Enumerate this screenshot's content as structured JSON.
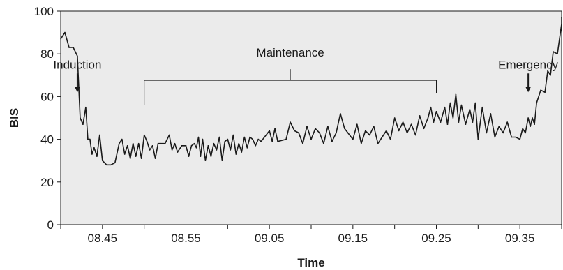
{
  "chart_data": {
    "type": "line",
    "xlabel": "Time",
    "ylabel": "BIS",
    "xlim": [
      "08:40",
      "09:40"
    ],
    "ylim": [
      0,
      100
    ],
    "x_ticks": [
      {
        "value": "08:45",
        "label": "08.45"
      },
      {
        "value": "08:55",
        "label": "08.55"
      },
      {
        "value": "09:05",
        "label": "09.05"
      },
      {
        "value": "09:15",
        "label": "09.15"
      },
      {
        "value": "09:25",
        "label": "09.25"
      },
      {
        "value": "09:35",
        "label": "09.35"
      }
    ],
    "y_ticks": [
      0,
      20,
      40,
      60,
      80,
      100
    ],
    "grid": false,
    "background": "#ebebeb",
    "line_color": "#1a1a1a",
    "annotations": [
      {
        "label": "Induction",
        "type": "arrow",
        "x": "08:42",
        "y": 62
      },
      {
        "label": "Maintenance",
        "type": "bracket",
        "x_start": "08:50",
        "x_end": "09:25",
        "y": 65
      },
      {
        "label": "Emergency",
        "type": "arrow",
        "x": "09:36",
        "y": 62
      }
    ],
    "series": [
      {
        "points": [
          [
            "08:40",
            87
          ],
          [
            "08:40",
            90
          ],
          [
            "08:41",
            83
          ],
          [
            "08:41",
            83
          ],
          [
            "08:42",
            79
          ],
          [
            "08:42",
            50
          ],
          [
            "08:42",
            47
          ],
          [
            "08:43",
            55
          ],
          [
            "08:43",
            40
          ],
          [
            "08:43",
            40
          ],
          [
            "08:43",
            33
          ],
          [
            "08:44",
            36
          ],
          [
            "08:44",
            32
          ],
          [
            "08:44",
            42
          ],
          [
            "08:45",
            30
          ],
          [
            "08:45",
            28
          ],
          [
            "08:46",
            28
          ],
          [
            "08:46",
            29
          ],
          [
            "08:47",
            38
          ],
          [
            "08:47",
            40
          ],
          [
            "08:47",
            33
          ],
          [
            "08:48",
            37
          ],
          [
            "08:48",
            31
          ],
          [
            "08:48",
            38
          ],
          [
            "08:49",
            32
          ],
          [
            "08:49",
            38
          ],
          [
            "08:49",
            31
          ],
          [
            "08:50",
            42
          ],
          [
            "08:50",
            39
          ],
          [
            "08:50",
            35
          ],
          [
            "08:51",
            37
          ],
          [
            "08:51",
            31
          ],
          [
            "08:51",
            38
          ],
          [
            "08:52",
            38
          ],
          [
            "08:52",
            38
          ],
          [
            "08:53",
            42
          ],
          [
            "08:53",
            35
          ],
          [
            "08:53",
            38
          ],
          [
            "08:54",
            34
          ],
          [
            "08:54",
            37
          ],
          [
            "08:55",
            37
          ],
          [
            "08:55",
            32
          ],
          [
            "08:55",
            37
          ],
          [
            "08:56",
            38
          ],
          [
            "08:56",
            36
          ],
          [
            "08:56",
            41
          ],
          [
            "08:56",
            32
          ],
          [
            "08:57",
            40
          ],
          [
            "08:57",
            30
          ],
          [
            "08:57",
            37
          ],
          [
            "08:58",
            32
          ],
          [
            "08:58",
            38
          ],
          [
            "08:58",
            35
          ],
          [
            "08:59",
            41
          ],
          [
            "08:59",
            30
          ],
          [
            "08:59",
            39
          ],
          [
            "09:00",
            40
          ],
          [
            "09:00",
            35
          ],
          [
            "09:00",
            42
          ],
          [
            "09:01",
            33
          ],
          [
            "09:01",
            38
          ],
          [
            "09:01",
            34
          ],
          [
            "09:02",
            41
          ],
          [
            "09:02",
            36
          ],
          [
            "09:02",
            41
          ],
          [
            "09:03",
            40
          ],
          [
            "09:03",
            37
          ],
          [
            "09:03",
            40
          ],
          [
            "09:04",
            39
          ],
          [
            "09:05",
            44
          ],
          [
            "09:05",
            39
          ],
          [
            "09:05",
            45
          ],
          [
            "09:06",
            39
          ],
          [
            "09:07",
            40
          ],
          [
            "09:07",
            48
          ],
          [
            "09:08",
            44
          ],
          [
            "09:08",
            43
          ],
          [
            "09:09",
            38
          ],
          [
            "09:09",
            46
          ],
          [
            "09:10",
            40
          ],
          [
            "09:10",
            45
          ],
          [
            "09:11",
            43
          ],
          [
            "09:11",
            38
          ],
          [
            "09:12",
            46
          ],
          [
            "09:12",
            39
          ],
          [
            "09:13",
            43
          ],
          [
            "09:13",
            52
          ],
          [
            "09:14",
            45
          ],
          [
            "09:15",
            40
          ],
          [
            "09:15",
            47
          ],
          [
            "09:16",
            38
          ],
          [
            "09:16",
            44
          ],
          [
            "09:17",
            42
          ],
          [
            "09:17",
            46
          ],
          [
            "09:18",
            38
          ],
          [
            "09:19",
            44
          ],
          [
            "09:19",
            40
          ],
          [
            "09:20",
            50
          ],
          [
            "09:20",
            44
          ],
          [
            "09:21",
            48
          ],
          [
            "09:21",
            43
          ],
          [
            "09:22",
            47
          ],
          [
            "09:22",
            42
          ],
          [
            "09:23",
            51
          ],
          [
            "09:23",
            45
          ],
          [
            "09:24",
            50
          ],
          [
            "09:24",
            55
          ],
          [
            "09:24",
            48
          ],
          [
            "09:25",
            53
          ],
          [
            "09:25",
            48
          ],
          [
            "09:26",
            55
          ],
          [
            "09:26",
            47
          ],
          [
            "09:26",
            57
          ],
          [
            "09:27",
            50
          ],
          [
            "09:27",
            61
          ],
          [
            "09:27",
            48
          ],
          [
            "09:28",
            56
          ],
          [
            "09:28",
            47
          ],
          [
            "09:29",
            54
          ],
          [
            "09:29",
            48
          ],
          [
            "09:29",
            57
          ],
          [
            "09:30",
            40
          ],
          [
            "09:30",
            55
          ],
          [
            "09:31",
            43
          ],
          [
            "09:31",
            52
          ],
          [
            "09:32",
            41
          ],
          [
            "09:32",
            46
          ],
          [
            "09:33",
            43
          ],
          [
            "09:33",
            48
          ],
          [
            "09:34",
            41
          ],
          [
            "09:34",
            41
          ],
          [
            "09:35",
            40
          ],
          [
            "09:35",
            45
          ],
          [
            "09:35",
            43
          ],
          [
            "09:36",
            50
          ],
          [
            "09:36",
            46
          ],
          [
            "09:36",
            50
          ],
          [
            "09:36",
            47
          ],
          [
            "09:37",
            57
          ],
          [
            "09:37",
            63
          ],
          [
            "09:38",
            62
          ],
          [
            "09:38",
            72
          ],
          [
            "09:38",
            70
          ],
          [
            "09:39",
            81
          ],
          [
            "09:39",
            80
          ],
          [
            "09:40",
            94
          ],
          [
            "09:40",
            97
          ]
        ]
      }
    ]
  }
}
